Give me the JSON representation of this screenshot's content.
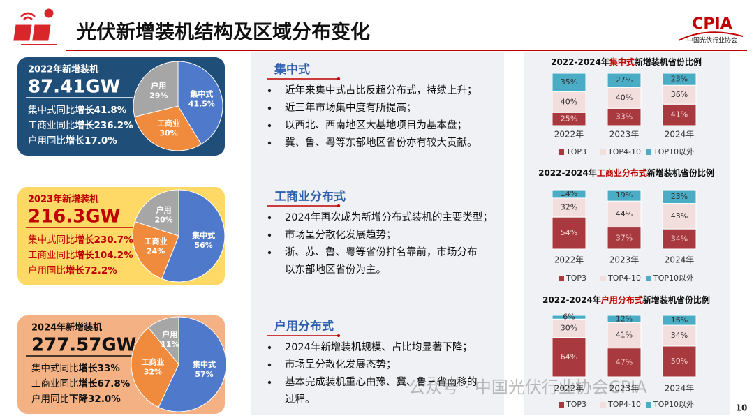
{
  "header": {
    "title": "光伏新增装机结构及区域分布变化",
    "logo": "CPIA",
    "logo_subtitle": "中国光伏行业协会"
  },
  "cards": [
    {
      "heading": "2022年新增装机",
      "total": "87.41GW",
      "lines": [
        [
          "集中式同比",
          "增长41.8%"
        ],
        [
          "工商业同比",
          "增长236.2%"
        ],
        [
          "户用同比",
          "增长17.0%"
        ]
      ]
    },
    {
      "heading": "2023年新增装机",
      "total": "216.3GW",
      "lines": [
        [
          "集中式同比",
          "增长230.7%"
        ],
        [
          "工商业同比",
          "增长104.2%"
        ],
        [
          "户用同比",
          "增长72.2%"
        ]
      ]
    },
    {
      "heading": "2024年新增装机",
      "total": "277.57GW",
      "lines": [
        [
          "集中式同比",
          "增长33%"
        ],
        [
          "工商业同比",
          "增长67.8%"
        ],
        [
          "户用同比",
          "下降32.0%"
        ]
      ]
    }
  ],
  "sections": [
    {
      "title": "集中式",
      "bullets": [
        [
          "近年来集中式占比反超分布式，持续上升；"
        ],
        [
          "近三年市场集中度有所提高；"
        ],
        [
          "以西北、西南地区大基地项目为基本盘；"
        ],
        [
          "冀、鲁、粤等东部地区省份亦有较大贡献。"
        ]
      ]
    },
    {
      "title": "工商业分布式",
      "bullets": [
        [
          "2024年再次成为新增分布式装机的主要类型；"
        ],
        [
          "市场呈分散化发展趋势；"
        ],
        [
          "浙、苏、鲁、粤等省份排名靠前，市场分布",
          "以东部地区省份为主。"
        ]
      ]
    },
    {
      "title": "户用分布式",
      "bullets": [
        [
          "2024年新增装机规模、占比均显著下降；"
        ],
        [
          "市场呈分散化发展态势；"
        ],
        [
          "基本完成装机重心由豫、冀、鲁三省南移的",
          "过程。"
        ]
      ]
    }
  ],
  "chart_data": [
    {
      "type": "pie",
      "categories": [
        "集中式",
        "工商业",
        "户用"
      ],
      "values": [
        41.5,
        30,
        29
      ],
      "value_labels": [
        "41.5%",
        "30%",
        "29%"
      ],
      "colors": [
        "#4f79cb",
        "#f08b3d",
        "#a6a6a6"
      ]
    },
    {
      "type": "pie",
      "categories": [
        "集中式",
        "工商业",
        "户用"
      ],
      "values": [
        56,
        24,
        20
      ],
      "value_labels": [
        "56%",
        "24%",
        "20%"
      ],
      "colors": [
        "#4f79cb",
        "#f08b3d",
        "#a6a6a6"
      ]
    },
    {
      "type": "pie",
      "categories": [
        "集中式",
        "工商业",
        "户用"
      ],
      "values": [
        57,
        32,
        11
      ],
      "value_labels": [
        "57%",
        "32%",
        "11%"
      ],
      "colors": [
        "#4f79cb",
        "#f08b3d",
        "#a6a6a6"
      ]
    },
    {
      "type": "stacked_bar",
      "title": [
        "2022-2024年",
        "集中式",
        "新增装机省份比例"
      ],
      "categories": [
        "2022年",
        "2023年",
        "2024年"
      ],
      "ylim": [
        0,
        100
      ],
      "series": [
        {
          "name": "TOP3",
          "color": "#a7393f",
          "values": [
            25,
            33,
            41
          ],
          "value_labels": [
            "25%",
            "33%",
            "41%"
          ]
        },
        {
          "name": "TOP4-10",
          "color": "#f3dede",
          "values": [
            40,
            40,
            36
          ],
          "value_labels": [
            "40%",
            "40%",
            "36%"
          ]
        },
        {
          "name": "TOP10以外",
          "color": "#4bacc6",
          "values": [
            35,
            27,
            23
          ],
          "value_labels": [
            "35%",
            "27%",
            "23%"
          ]
        }
      ]
    },
    {
      "type": "stacked_bar",
      "title": [
        "2022-2024年",
        "工商业分布式",
        "新增装机省份比例"
      ],
      "categories": [
        "2022年",
        "2023年",
        "2024年"
      ],
      "ylim": [
        0,
        100
      ],
      "series": [
        {
          "name": "TOP3",
          "color": "#a7393f",
          "values": [
            54,
            37,
            34
          ],
          "value_labels": [
            "54%",
            "37%",
            "34%"
          ]
        },
        {
          "name": "TOP4-10",
          "color": "#f3dede",
          "values": [
            32,
            44,
            43
          ],
          "value_labels": [
            "32%",
            "44%",
            "43%"
          ]
        },
        {
          "name": "TOP10以外",
          "color": "#4bacc6",
          "values": [
            14,
            19,
            23
          ],
          "value_labels": [
            "14%",
            "19%",
            "23%"
          ]
        }
      ]
    },
    {
      "type": "stacked_bar",
      "title": [
        "2022-2024年",
        "户用分布式",
        "新增装机省份比例"
      ],
      "categories": [
        "2022年",
        "2023年",
        "2024年"
      ],
      "ylim": [
        0,
        100
      ],
      "series": [
        {
          "name": "TOP3",
          "color": "#a7393f",
          "values": [
            64,
            47,
            50
          ],
          "value_labels": [
            "64%",
            "47%",
            "50%"
          ]
        },
        {
          "name": "TOP4-10",
          "color": "#f3dede",
          "values": [
            30,
            41,
            34
          ],
          "value_labels": [
            "30%",
            "41%",
            "34%"
          ]
        },
        {
          "name": "TOP10以外",
          "color": "#4bacc6",
          "values": [
            6,
            12,
            16
          ],
          "value_labels": [
            "6%",
            "12%",
            "16%"
          ]
        }
      ]
    }
  ],
  "footer": {
    "watermark": "公众号 · 中国光伏行业协会CPIA",
    "page": "10"
  }
}
